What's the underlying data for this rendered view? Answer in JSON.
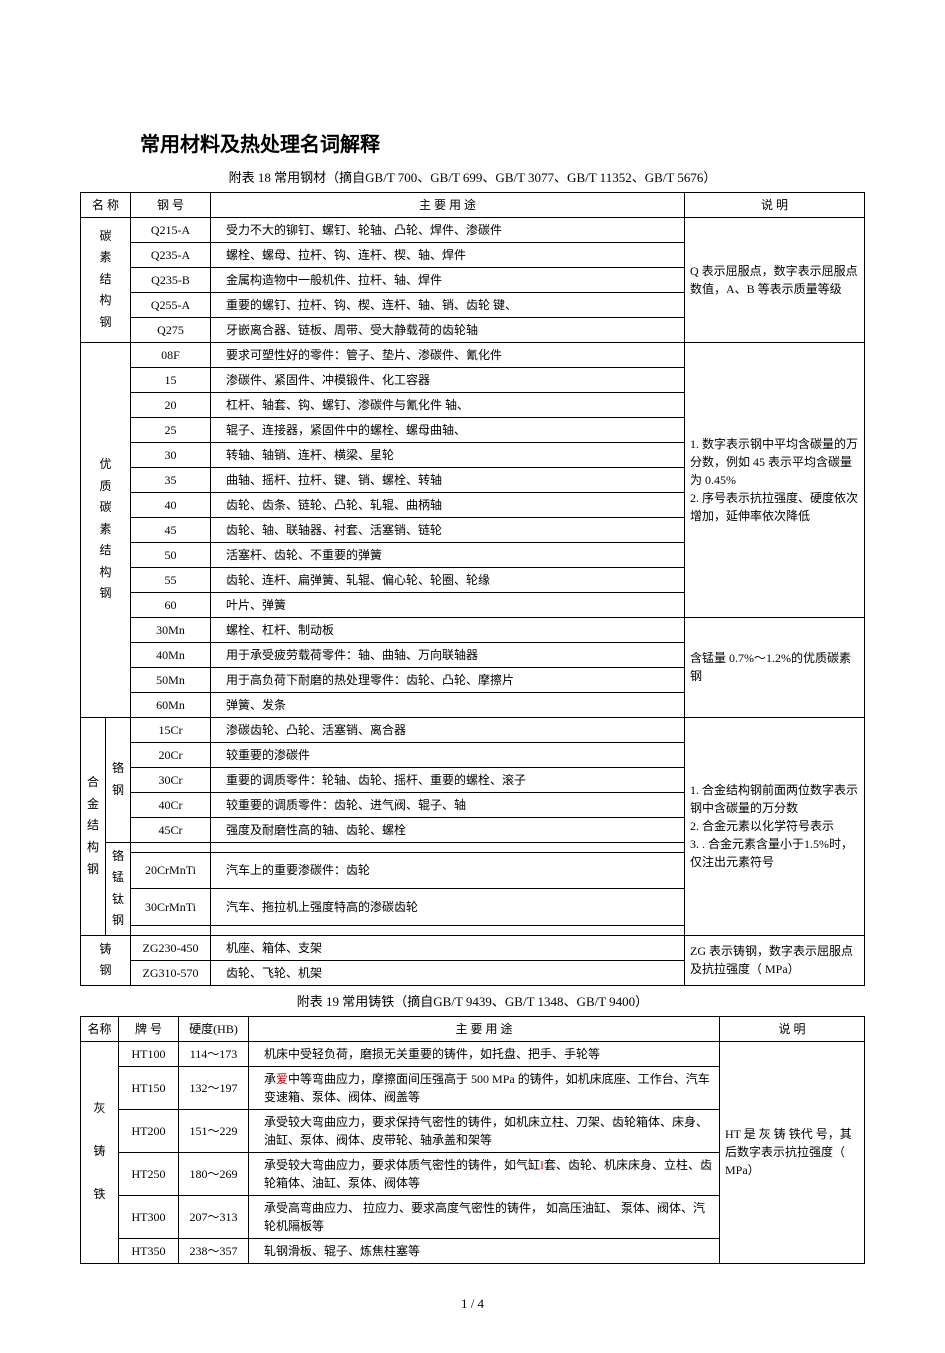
{
  "title": "常用材料及热处理名词解释",
  "table18": {
    "caption": "附表 18  常用钢材（摘自GB/T 700、GB/T 699、GB/T 3077、GB/T 11352、GB/T 5676）",
    "headers": {
      "name": "名  称",
      "grade": "钢  号",
      "use": "主  要  用  途",
      "desc": "说    明"
    },
    "g1": {
      "name": "碳\n素\n结\n构\n钢",
      "rows": [
        {
          "g": "Q215-A",
          "u": "受力不大的铆钉、螺钉、轮轴、凸轮、焊件、渗碳件"
        },
        {
          "g": "Q235-A",
          "u": "螺栓、螺母、拉杆、钩、连杆、楔、轴、焊件"
        },
        {
          "g": "Q235-B",
          "u": "金属构造物中一般机件、拉杆、轴、焊件"
        },
        {
          "g": "Q255-A",
          "u": "重要的螺钉、拉杆、钩、楔、连杆、轴、销、齿轮  键、"
        },
        {
          "g": "Q275",
          "u": "牙嵌离合器、链板、周带、受大静载荷的齿轮轴"
        }
      ],
      "desc": "    Q 表示屈服点，数字表示屈服点数值，A、B 等表示质量等级"
    },
    "g2a": {
      "name": "优\n质\n碳\n素\n结\n构\n钢",
      "rows": [
        {
          "g": "08F",
          "u": "要求可塑性好的零件：管子、垫片、渗碳件、氰化件"
        },
        {
          "g": "15",
          "u": "渗碳件、紧固件、冲模锻件、化工容器"
        },
        {
          "g": "20",
          "u": "杠杆、轴套、钩、螺钉、渗碳件与氰化件  轴、"
        },
        {
          "g": "25",
          "u": "辊子、连接器，紧固件中的螺栓、螺母曲轴、"
        },
        {
          "g": "30",
          "u": "转轴、轴销、连杆、横梁、星轮"
        },
        {
          "g": "35",
          "u": "曲轴、摇杆、拉杆、键、销、螺栓、转轴"
        },
        {
          "g": "40",
          "u": "齿轮、齿条、链轮、凸轮、轧辊、曲柄轴"
        },
        {
          "g": "45",
          "u": "齿轮、轴、联轴器、衬套、活塞销、链轮"
        },
        {
          "g": "50",
          "u": "活塞杆、齿轮、不重要的弹簧"
        },
        {
          "g": "55",
          "u": "齿轮、连杆、扁弹簧、轧辊、偏心轮、轮圈、轮缘"
        },
        {
          "g": "60",
          "u": "叶片、弹簧"
        }
      ],
      "desc": "    1.  数字表示钢中平均含碳量的万分数，例如 45 表示平均含碳量为  0.45%\n    2.  序号表示抗拉强度、硬度依次增加，延伸率依次降低"
    },
    "g2b": {
      "rows": [
        {
          "g": "30Mn",
          "u": "螺栓、杠杆、制动板"
        },
        {
          "g": "40Mn",
          "u": "用于承受疲劳载荷零件：轴、曲轴、万向联轴器"
        },
        {
          "g": "50Mn",
          "u": "用于高负荷下耐磨的热处理零件：齿轮、凸轮、摩擦片"
        },
        {
          "g": "60Mn",
          "u": "弹簧、发条"
        }
      ],
      "desc": "    含锰量  0.7%～1.2%的优质碳素钢"
    },
    "g3a": {
      "name": "合\n金\n结\n构\n钢",
      "sub": "铬\n钢",
      "rows": [
        {
          "g": "15Cr",
          "u": "渗碳齿轮、凸轮、活塞销、离合器"
        },
        {
          "g": "20Cr",
          "u": "较重要的渗碳件"
        },
        {
          "g": "30Cr",
          "u": "重要的调质零件：轮轴、齿轮、摇杆、重要的螺栓、滚子"
        },
        {
          "g": "40Cr",
          "u": "较重要的调质零件：齿轮、进气阀、辊子、轴"
        },
        {
          "g": "45Cr",
          "u": "强度及耐磨性高的轴、齿轮、螺栓"
        }
      ],
      "desc": "    1.  合金结构钢前面两位数字表示钢中含碳量的万分数\n    2.  合金元素以化学符号表示\n    3.  . 合金元素含量小于1.5%时，仅注出元素符号"
    },
    "g3b": {
      "sub": "铬\n锰\n钛\n钢",
      "rows": [
        {
          "g": "",
          "u": ""
        },
        {
          "g": "20CrMnTi",
          "u": "汽车上的重要渗碳件：齿轮"
        },
        {
          "g": "30CrMnTi",
          "u": "汽车、拖拉机上强度特高的渗碳齿轮"
        },
        {
          "g": "",
          "u": ""
        }
      ]
    },
    "g4": {
      "name": "铸\n钢",
      "rows": [
        {
          "g": "ZG230-450",
          "u": "机座、箱体、支架"
        },
        {
          "g": "ZG310-570",
          "u": "齿轮、飞轮、机架"
        }
      ],
      "desc": "    ZG 表示铸钢，数字表示屈服点及抗拉强度（ MPa）"
    }
  },
  "table19": {
    "caption": "附表  19   常用铸铁（摘自GB/T 9439、GB/T 1348、GB/T 9400）",
    "headers": {
      "name": "名称",
      "grade": "牌  号",
      "hard": "硬度(HB)",
      "use": "主  要  用  途",
      "desc": "说    明"
    },
    "g1": {
      "name": "灰\n\n铸\n\n铁",
      "rows": [
        {
          "g": "HT100",
          "h": "114～173",
          "u": "机床中受轻负荷，磨损无关重要的铸件，如托盘、把手、手轮等"
        },
        {
          "g": "HT150",
          "h": "132～197",
          "u": "    承{red}爱{/red}中等弯曲应力，摩擦面间压强高于  500 MPa 的铸件，如机床底座、工作台、汽车变速箱、泵体、阀体、阀盖等"
        },
        {
          "g": "HT200",
          "h": "151～229",
          "u": "    承受较大弯曲应力，要求保持气密性的铸件，如机床立柱、刀架、齿轮箱体、床身、油缸、泵体、阀体、皮带轮、轴承盖和架等"
        },
        {
          "g": "HT250",
          "h": "180～269",
          "u": "    承受较大弯曲应力，要求体质气密性的铸件，如气缸{red}I{/red}套、齿轮、机床床身、立柱、齿轮箱体、油缸、泵体、阀体等"
        },
        {
          "g": "HT300",
          "h": "207～313",
          "u": "    承受高弯曲应力、  拉应力、要求高度气密性的铸件，  如高压油缸、  泵体、阀体、汽轮机隔板等"
        },
        {
          "g": "HT350",
          "h": "238～357",
          "u": "轧钢滑板、辊子、炼焦柱塞等"
        }
      ],
      "desc": "    HT 是 灰 铸 铁代 号，其后数字表示抗拉强度（ MPa）"
    }
  },
  "footer": "1  /  4"
}
